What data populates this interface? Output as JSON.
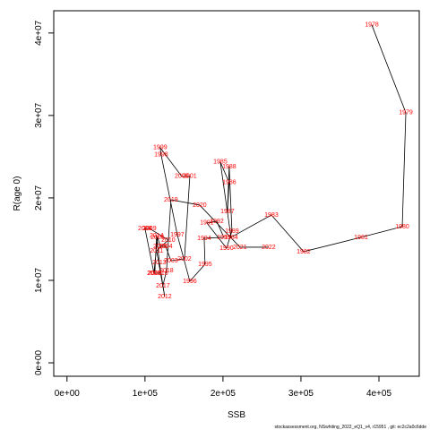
{
  "chart_data": {
    "type": "line",
    "xlabel": "SSB",
    "ylabel": "R(age 0)",
    "footer": "stockassessment.org, NSwhiting_2022_eQ1_v4, r15951 , git: ec2c2a0c6dde",
    "xlim": [
      -17000,
      451700
    ],
    "ylim": [
      -1630000,
      42700000
    ],
    "xticks": [
      {
        "value": 0,
        "label": "0e+00"
      },
      {
        "value": 100000,
        "label": "1e+05"
      },
      {
        "value": 200000,
        "label": "2e+05"
      },
      {
        "value": 300000,
        "label": "3e+05"
      },
      {
        "value": 400000,
        "label": "4e+05"
      }
    ],
    "yticks": [
      {
        "value": 0,
        "label": "0e+00"
      },
      {
        "value": 10000000,
        "label": "1e+07"
      },
      {
        "value": 20000000,
        "label": "2e+07"
      },
      {
        "value": 30000000,
        "label": "3e+07"
      },
      {
        "value": 40000000,
        "label": "4e+07"
      }
    ],
    "line_color": "#000000",
    "label_color": "#ff0000",
    "labels": [
      "1978",
      "1979",
      "1980",
      "1981",
      "1982",
      "1983",
      "1984",
      "1985",
      "1986",
      "1987",
      "1988",
      "1989",
      "1990",
      "1991",
      "1992",
      "1993",
      "1994",
      "1995",
      "1996",
      "1997",
      "1998",
      "1999",
      "2000",
      "2001",
      "2002",
      "2003",
      "2004",
      "2005",
      "2006",
      "2007",
      "2008",
      "2009",
      "2010",
      "2011",
      "2012",
      "2013",
      "2014",
      "2015",
      "2016",
      "2017",
      "2018",
      "2019",
      "2020",
      "2021",
      "2022"
    ],
    "x": [
      390800,
      434500,
      429900,
      377000,
      303400,
      262100,
      210300,
      196600,
      208000,
      205700,
      208000,
      211500,
      204600,
      179300,
      192000,
      201100,
      175900,
      177000,
      157500,
      141400,
      120700,
      119500,
      147100,
      157500,
      150600,
      133300,
      126400,
      119500,
      116100,
      111500,
      100000,
      105700,
      129900,
      114900,
      125300,
      118400,
      114900,
      112600,
      120700,
      123000,
      127600,
      133300,
      170100,
      221800,
      258600
    ],
    "y": [
      40980000,
      30330000,
      16520000,
      15220000,
      13480000,
      17930000,
      15220000,
      24350000,
      21850000,
      18370000,
      23800000,
      15980000,
      13910000,
      16960000,
      17170000,
      15220000,
      15110000,
      11960000,
      9890000,
      15540000,
      25220000,
      26090000,
      22610000,
      22610000,
      12610000,
      12390000,
      14130000,
      14130000,
      15220000,
      10870000,
      16300000,
      16300000,
      14890000,
      13590000,
      8040000,
      12170000,
      15430000,
      10870000,
      10870000,
      9350000,
      11200000,
      19780000,
      19130000,
      14020000,
      14020000
    ]
  }
}
